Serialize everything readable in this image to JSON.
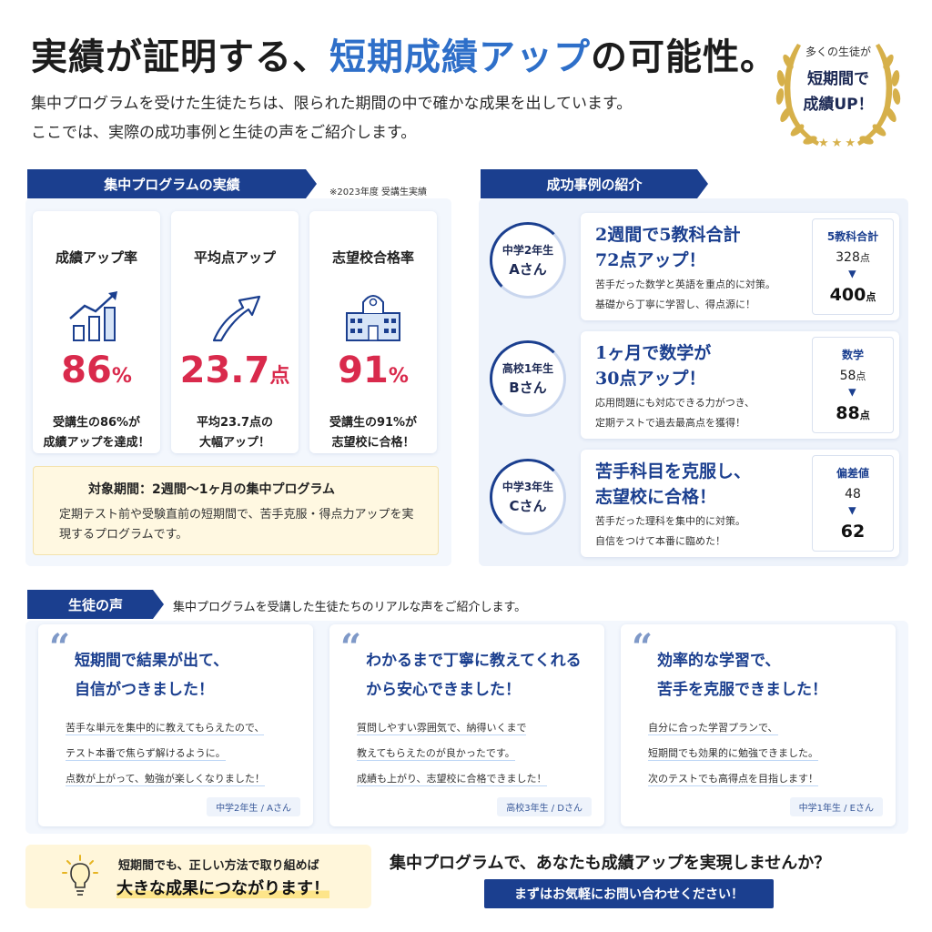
{
  "hero": {
    "title_pre": "実績が証明する、",
    "title_accent": "短期成績アップ",
    "title_post": "の可能性。",
    "desc_line1": "集中プログラムを受けた生徒たちは、限られた期間の中で確かな成果を出しています。",
    "desc_line2": "ここでは、実際の成功事例と生徒の声をご紹介します。"
  },
  "badge": {
    "line1": "多くの生徒が",
    "line2": "短期間で",
    "line3": "成績UP！",
    "stars": "★★★"
  },
  "results": {
    "heading": "集中プログラムの実績",
    "note": "※2023年度 受講生実績",
    "stats": [
      {
        "label": "成績アップ率",
        "icon": "bar-chart-up-icon",
        "value": "86",
        "unit": "%",
        "desc1": "受講生の86%が",
        "desc2": "成績アップを達成！"
      },
      {
        "label": "平均点アップ",
        "icon": "arrow-up-right-icon",
        "value": "23.7",
        "unit": "点",
        "desc1": "平均23.7点の",
        "desc2": "大幅アップ！"
      },
      {
        "label": "志望校合格率",
        "icon": "school-building-icon",
        "value": "91",
        "unit": "%",
        "desc1": "受講生の91%が",
        "desc2": "志望校に合格！"
      }
    ],
    "period_title": "対象期間：2週間〜1ヶ月の集中プログラム",
    "period_text": "定期テスト前や受験直前の短期間で、苦手克服・得点力アップを実現するプログラムです。"
  },
  "cases": {
    "heading": "成功事例の紹介",
    "items": [
      {
        "grade": "中学2年生",
        "name": "Aさん",
        "title1": "2週間で5教科合計",
        "title2": "72点アップ！",
        "text1": "苦手だった数学と英語を重点的に対策。",
        "text2": "基礎から丁寧に学習し、得点源に！",
        "score_label": "5教科合計",
        "before": "328",
        "after": "400",
        "unit": "点"
      },
      {
        "grade": "高校1年生",
        "name": "Bさん",
        "title1": "1ヶ月で数学が",
        "title2": "30点アップ！",
        "text1": "応用問題にも対応できる力がつき、",
        "text2": "定期テストで過去最高点を獲得！",
        "score_label": "数学",
        "before": "58",
        "after": "88",
        "unit": "点"
      },
      {
        "grade": "中学3年生",
        "name": "Cさん",
        "title1": "苦手科目を克服し、",
        "title2": "志望校に合格！",
        "text1": "苦手だった理科を集中的に対策。",
        "text2": "自信をつけて本番に臨めた！",
        "score_label": "偏差値",
        "before": "48",
        "after": "62",
        "unit": ""
      }
    ],
    "arrow": "▶"
  },
  "voices": {
    "heading": "生徒の声",
    "intro": "集中プログラムを受講した生徒たちのリアルな声をご紹介します。",
    "quote_mark": "“",
    "items": [
      {
        "title1": "短期間で結果が出て、",
        "title2": "自信がつきました！",
        "l1": "苦手な単元を集中的に教えてもらえたので、",
        "l2": "テスト本番で焦らず解けるように。",
        "l3": "点数が上がって、勉強が楽しくなりました！",
        "tag": "中学2年生 / Aさん"
      },
      {
        "title1": "わかるまで丁寧に教えてくれる",
        "title2": "から安心できました！",
        "l1": "質問しやすい雰囲気で、納得いくまで",
        "l2": "教えてもらえたのが良かったです。",
        "l3": "成績も上がり、志望校に合格できました！",
        "tag": "高校3年生 / Dさん"
      },
      {
        "title1": "効率的な学習で、",
        "title2": "苦手を克服できました！",
        "l1": "自分に合った学習プランで、",
        "l2": "短期間でも効果的に勉強できました。",
        "l3": "次のテストでも高得点を目指します！",
        "tag": "中学1年生 / Eさん"
      }
    ]
  },
  "footer": {
    "tip_line1": "短期間でも、正しい方法で取り組めば",
    "tip_line2": "大きな成果につながります！",
    "cta_heading": "集中プログラムで、あなたも成績アップを実現しませんか？",
    "cta_button": "まずはお気軽にお問い合わせください！"
  },
  "colors": {
    "navy": "#1b3f8f",
    "accent_blue": "#2e6fc9",
    "stat_red": "#d92a4c",
    "gold": "#d6b04a"
  }
}
